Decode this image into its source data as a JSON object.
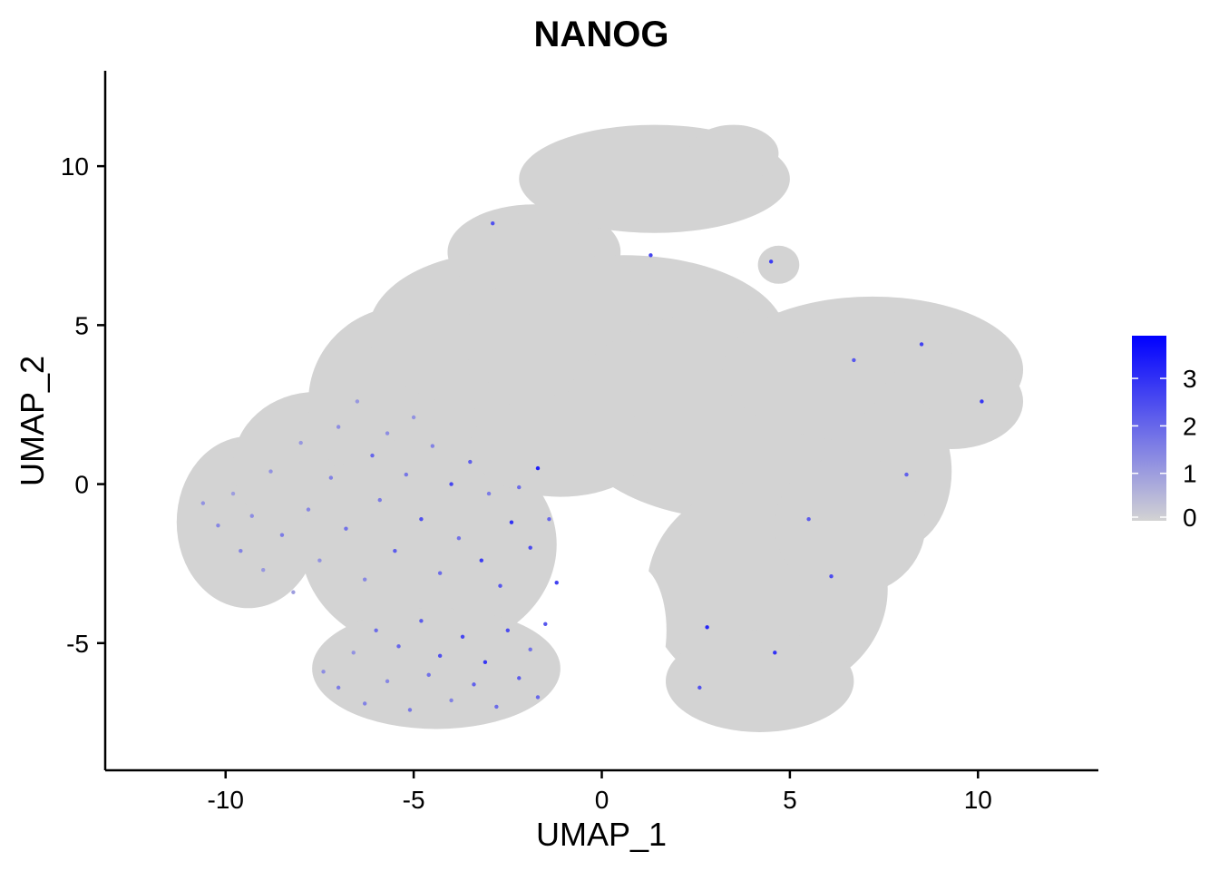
{
  "chart_data": {
    "type": "scatter",
    "title": "NANOG",
    "xlabel": "UMAP_1",
    "ylabel": "UMAP_2",
    "xlim": [
      -13.2,
      13.2
    ],
    "ylim": [
      -9.0,
      13.0
    ],
    "x_ticks": [
      -10,
      -5,
      0,
      5,
      10
    ],
    "x_tick_labels": [
      "-10",
      "-5",
      "0",
      "5",
      "10"
    ],
    "y_ticks": [
      -5,
      0,
      5,
      10
    ],
    "y_tick_labels": [
      "-5",
      "0",
      "5",
      "10"
    ],
    "grid": false,
    "legend_position": "right",
    "colorbar": {
      "min": 0,
      "max": 3.9,
      "ticks": [
        0,
        1,
        2,
        3
      ],
      "tick_labels": [
        "0",
        "1",
        "2",
        "3"
      ],
      "low_color": "#d3d3d3",
      "high_color": "#0000ff"
    },
    "background_color": "#d3d3d3",
    "series": [
      {
        "values_key": "expression",
        "points": [
          {
            "x": -10.6,
            "y": -0.6,
            "expression": 1.2
          },
          {
            "x": -10.2,
            "y": -1.3,
            "expression": 1.4
          },
          {
            "x": -9.8,
            "y": -0.3,
            "expression": 1.0
          },
          {
            "x": -9.6,
            "y": -2.1,
            "expression": 1.5
          },
          {
            "x": -9.3,
            "y": -1.0,
            "expression": 1.3
          },
          {
            "x": -9.0,
            "y": -2.7,
            "expression": 1.1
          },
          {
            "x": -8.8,
            "y": 0.4,
            "expression": 1.2
          },
          {
            "x": -8.5,
            "y": -1.6,
            "expression": 1.6
          },
          {
            "x": -8.2,
            "y": -3.4,
            "expression": 1.0
          },
          {
            "x": -8.0,
            "y": 1.3,
            "expression": 1.1
          },
          {
            "x": -7.8,
            "y": -0.8,
            "expression": 1.4
          },
          {
            "x": -7.5,
            "y": -2.4,
            "expression": 1.2
          },
          {
            "x": -7.2,
            "y": 0.2,
            "expression": 1.5
          },
          {
            "x": -7.0,
            "y": 1.8,
            "expression": 1.3
          },
          {
            "x": -6.8,
            "y": -1.4,
            "expression": 1.8
          },
          {
            "x": -6.5,
            "y": 2.6,
            "expression": 1.1
          },
          {
            "x": -6.3,
            "y": -3.0,
            "expression": 1.4
          },
          {
            "x": -6.1,
            "y": 0.9,
            "expression": 2.0
          },
          {
            "x": -5.9,
            "y": -0.5,
            "expression": 1.6
          },
          {
            "x": -5.7,
            "y": 1.6,
            "expression": 1.3
          },
          {
            "x": -5.5,
            "y": -2.1,
            "expression": 2.2
          },
          {
            "x": -5.2,
            "y": 0.3,
            "expression": 1.7
          },
          {
            "x": -5.0,
            "y": 2.1,
            "expression": 1.2
          },
          {
            "x": -4.8,
            "y": -1.1,
            "expression": 2.4
          },
          {
            "x": -4.5,
            "y": 1.2,
            "expression": 1.5
          },
          {
            "x": -4.3,
            "y": -2.8,
            "expression": 1.9
          },
          {
            "x": -4.0,
            "y": 0.0,
            "expression": 2.6
          },
          {
            "x": -3.8,
            "y": -1.7,
            "expression": 1.8
          },
          {
            "x": -3.5,
            "y": 0.7,
            "expression": 2.1
          },
          {
            "x": -3.2,
            "y": -2.4,
            "expression": 2.8
          },
          {
            "x": -3.0,
            "y": -0.3,
            "expression": 1.6
          },
          {
            "x": -2.7,
            "y": -3.2,
            "expression": 2.3
          },
          {
            "x": -2.4,
            "y": -1.2,
            "expression": 3.0
          },
          {
            "x": -2.2,
            "y": -0.1,
            "expression": 1.9
          },
          {
            "x": -1.9,
            "y": -2.0,
            "expression": 2.5
          },
          {
            "x": -1.7,
            "y": 0.5,
            "expression": 3.3
          },
          {
            "x": -1.4,
            "y": -1.1,
            "expression": 2.0
          },
          {
            "x": -1.2,
            "y": -3.1,
            "expression": 2.7
          },
          {
            "x": -7.4,
            "y": -5.9,
            "expression": 1.3
          },
          {
            "x": -7.0,
            "y": -6.4,
            "expression": 1.6
          },
          {
            "x": -6.6,
            "y": -5.3,
            "expression": 1.2
          },
          {
            "x": -6.3,
            "y": -6.9,
            "expression": 1.5
          },
          {
            "x": -6.0,
            "y": -4.6,
            "expression": 1.9
          },
          {
            "x": -5.7,
            "y": -6.2,
            "expression": 1.4
          },
          {
            "x": -5.4,
            "y": -5.1,
            "expression": 2.0
          },
          {
            "x": -5.1,
            "y": -7.1,
            "expression": 1.7
          },
          {
            "x": -4.8,
            "y": -4.3,
            "expression": 2.2
          },
          {
            "x": -4.6,
            "y": -6.0,
            "expression": 1.8
          },
          {
            "x": -4.3,
            "y": -5.4,
            "expression": 2.4
          },
          {
            "x": -4.0,
            "y": -6.8,
            "expression": 1.5
          },
          {
            "x": -3.7,
            "y": -4.8,
            "expression": 2.6
          },
          {
            "x": -3.4,
            "y": -6.3,
            "expression": 2.1
          },
          {
            "x": -3.1,
            "y": -5.6,
            "expression": 2.9
          },
          {
            "x": -2.8,
            "y": -7.0,
            "expression": 1.9
          },
          {
            "x": -2.5,
            "y": -4.6,
            "expression": 2.5
          },
          {
            "x": -2.2,
            "y": -6.1,
            "expression": 2.2
          },
          {
            "x": -1.9,
            "y": -5.2,
            "expression": 1.8
          },
          {
            "x": -1.7,
            "y": -6.7,
            "expression": 2.0
          },
          {
            "x": -1.5,
            "y": -4.4,
            "expression": 2.3
          },
          {
            "x": -2.9,
            "y": 8.2,
            "expression": 2.4
          },
          {
            "x": 1.3,
            "y": 7.2,
            "expression": 2.6
          },
          {
            "x": 4.5,
            "y": 7.0,
            "expression": 2.8
          },
          {
            "x": 2.8,
            "y": -4.5,
            "expression": 3.2
          },
          {
            "x": 4.6,
            "y": -5.3,
            "expression": 3.0
          },
          {
            "x": 6.1,
            "y": -2.9,
            "expression": 2.5
          },
          {
            "x": 8.5,
            "y": 4.4,
            "expression": 2.7
          },
          {
            "x": 10.1,
            "y": 2.6,
            "expression": 2.9
          },
          {
            "x": 5.5,
            "y": -1.1,
            "expression": 2.2
          },
          {
            "x": 8.1,
            "y": 0.3,
            "expression": 2.1
          },
          {
            "x": 2.6,
            "y": -6.4,
            "expression": 2.4
          },
          {
            "x": 6.7,
            "y": 3.9,
            "expression": 2.3
          }
        ]
      }
    ]
  }
}
